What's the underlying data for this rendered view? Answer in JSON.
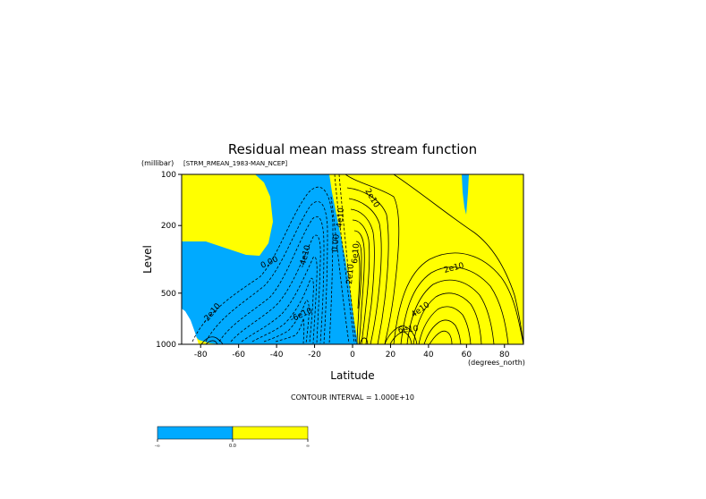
{
  "chart_data": {
    "type": "contour",
    "title": "Residual mean mass stream function",
    "dataset_label": "[STRM_RMEAN_1983-MAN_NCEP]",
    "xlabel": "Latitude",
    "xunits": "(degrees_north)",
    "ylabel": "Level",
    "yunits": "(millibar)",
    "x_ticks": [
      "-80",
      "-60",
      "-40",
      "-20",
      "0",
      "20",
      "40",
      "60",
      "80"
    ],
    "x_tick_values": [
      -80,
      -60,
      -40,
      -20,
      0,
      20,
      40,
      60,
      80
    ],
    "xlim": [
      -90,
      90
    ],
    "y_ticks": [
      "100",
      "200",
      "500",
      "1000"
    ],
    "y_tick_values": [
      100,
      200,
      500,
      1000
    ],
    "ylim": [
      1000,
      100
    ],
    "y_scale": "log",
    "contour_interval_text": "CONTOUR INTERVAL = 1.000E+10",
    "contour_labels": [
      "0.00",
      "-4e10",
      "-2e10",
      "-6e10",
      "2e10",
      "4e10",
      "6e10",
      "0.00",
      "2e10",
      "4e10",
      "6e10",
      "2e10",
      "0.00"
    ],
    "fill_colors": {
      "negative": "#00aaff",
      "positive": "#ffff00"
    },
    "colorbar": {
      "labels": [
        "-∞",
        "0.0",
        "∞"
      ],
      "colors": [
        "#00aaff",
        "#ffff00"
      ]
    },
    "cells": [
      {
        "id": "southern-cell",
        "sign": "negative",
        "center_lat": -30,
        "center_p": 550,
        "max_abs": 60000000000.0
      },
      {
        "id": "tropical-cell",
        "sign": "positive",
        "center_lat": 8,
        "center_p": 300,
        "max_abs": 120000000000.0
      },
      {
        "id": "northern-cell",
        "sign": "positive",
        "center_lat": 40,
        "center_p": 650,
        "max_abs": 70000000000.0
      }
    ]
  }
}
